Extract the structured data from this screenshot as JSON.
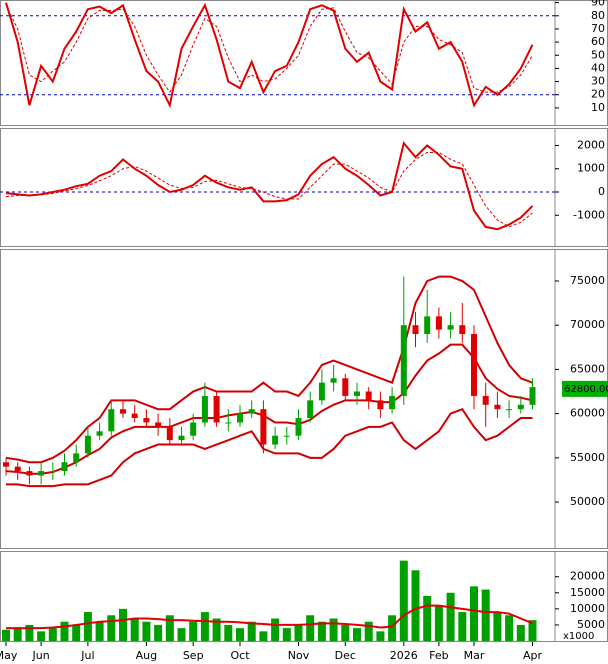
{
  "chart_data": [
    {
      "type": "line",
      "ylim": [
        -3,
        92
      ],
      "yticks": [
        10,
        20,
        30,
        40,
        50,
        60,
        70,
        80,
        90
      ],
      "reference_lines": [
        80,
        20
      ],
      "series": [
        {
          "color": "#e00000",
          "dash": false,
          "values": [
            90,
            60,
            12,
            42,
            30,
            55,
            68,
            85,
            87,
            82,
            88,
            62,
            38,
            30,
            12,
            55,
            72,
            88,
            62,
            30,
            25,
            45,
            22,
            38,
            42,
            60,
            85,
            88,
            84,
            55,
            45,
            52,
            30,
            24,
            85,
            68,
            75,
            55,
            60,
            45,
            12,
            26,
            20,
            28,
            40,
            58
          ]
        },
        {
          "color": "#e00000",
          "dash": true,
          "values": [
            88,
            70,
            35,
            30,
            38,
            45,
            60,
            78,
            84,
            84,
            85,
            72,
            50,
            35,
            22,
            35,
            58,
            78,
            72,
            48,
            30,
            35,
            30,
            32,
            40,
            50,
            72,
            85,
            86,
            68,
            52,
            48,
            38,
            28,
            60,
            72,
            72,
            62,
            58,
            52,
            25,
            22,
            22,
            26,
            35,
            50
          ]
        }
      ]
    },
    {
      "type": "line",
      "ylim": [
        -2320,
        2750
      ],
      "yticks": [
        2000,
        1000,
        0,
        -1000
      ],
      "reference_lines": [
        0
      ],
      "series": [
        {
          "color": "#e00000",
          "dash": false,
          "values": [
            -50,
            -100,
            -150,
            -100,
            0,
            100,
            250,
            350,
            700,
            900,
            1400,
            1000,
            700,
            300,
            0,
            100,
            300,
            700,
            400,
            200,
            100,
            200,
            -400,
            -400,
            -350,
            -100,
            700,
            1200,
            1500,
            1000,
            700,
            300,
            -150,
            0,
            2100,
            1500,
            2000,
            1600,
            1100,
            1000,
            -800,
            -1500,
            -1600,
            -1400,
            -1100,
            -600
          ]
        },
        {
          "color": "#e00000",
          "dash": true,
          "values": [
            -200,
            -150,
            -130,
            -120,
            -60,
            40,
            150,
            280,
            480,
            700,
            1000,
            1100,
            900,
            600,
            300,
            150,
            200,
            450,
            500,
            350,
            200,
            150,
            0,
            -200,
            -300,
            -300,
            200,
            700,
            1200,
            1200,
            900,
            600,
            200,
            0,
            900,
            1400,
            1700,
            1700,
            1400,
            1200,
            300,
            -600,
            -1200,
            -1500,
            -1300,
            -900
          ]
        }
      ]
    },
    {
      "type": "candlestick",
      "ylim": [
        44800,
        78620
      ],
      "yticks": [
        50000,
        55000,
        60000,
        65000,
        70000,
        75000
      ],
      "up_color": "#00a000",
      "down_color": "#e00000",
      "last_price": {
        "value": 62800,
        "label": "62800.00"
      },
      "open": [
        54500,
        54000,
        53500,
        53000,
        53500,
        53500,
        54500,
        55500,
        57500,
        58000,
        60500,
        60000,
        59500,
        59000,
        58500,
        57000,
        57500,
        59000,
        62000,
        59000,
        59000,
        60000,
        60500,
        56500,
        57500,
        57500,
        59500,
        61500,
        63500,
        64000,
        62000,
        62500,
        61500,
        60500,
        62000,
        70000,
        69000,
        71000,
        69500,
        70000,
        69000,
        62000,
        61000,
        60500,
        60500,
        61000
      ],
      "high": [
        55000,
        54500,
        54000,
        54500,
        54500,
        55500,
        56500,
        58500,
        59000,
        61500,
        61500,
        61000,
        60500,
        60000,
        59500,
        58500,
        60000,
        63500,
        62500,
        60500,
        61000,
        61500,
        61500,
        58500,
        58500,
        60500,
        62500,
        65000,
        65500,
        64500,
        63500,
        63000,
        62500,
        63000,
        75500,
        71500,
        74000,
        72000,
        71500,
        72500,
        70000,
        63500,
        62500,
        61500,
        62000,
        64000
      ],
      "low": [
        53000,
        52500,
        52000,
        52000,
        52500,
        53000,
        54000,
        55000,
        57000,
        57500,
        59500,
        59000,
        58500,
        57500,
        56500,
        56500,
        57000,
        58500,
        58500,
        58000,
        58500,
        59500,
        55500,
        56000,
        56500,
        57000,
        59000,
        61000,
        62500,
        61500,
        61000,
        60500,
        59500,
        60000,
        61000,
        67500,
        68000,
        68500,
        68500,
        68000,
        60500,
        58500,
        59500,
        59500,
        60000,
        60500
      ],
      "close": [
        54000,
        53500,
        53000,
        53500,
        53500,
        54500,
        55500,
        57500,
        58000,
        60500,
        60000,
        59500,
        59000,
        58500,
        57000,
        57500,
        59000,
        62000,
        59000,
        59000,
        60000,
        60500,
        56500,
        57500,
        57500,
        59500,
        61500,
        63500,
        64000,
        62000,
        62500,
        61500,
        60500,
        62000,
        70000,
        69000,
        71000,
        69500,
        70000,
        69000,
        62000,
        61000,
        60500,
        60500,
        61000,
        63000
      ],
      "bands": [
        {
          "color": "#d00000",
          "values": [
            55000,
            54800,
            54500,
            54500,
            55000,
            55800,
            57000,
            58500,
            59500,
            61500,
            61500,
            61500,
            61000,
            60500,
            60500,
            61500,
            62500,
            63000,
            62500,
            62500,
            62500,
            62500,
            63500,
            62500,
            62500,
            62000,
            63500,
            65500,
            66000,
            65500,
            65000,
            64500,
            64000,
            63500,
            67500,
            72500,
            75000,
            75500,
            75500,
            75000,
            74000,
            71000,
            68000,
            65500,
            64000,
            63500
          ]
        },
        {
          "color": "#d00000",
          "values": [
            53500,
            53400,
            53200,
            53200,
            53400,
            53900,
            54500,
            55300,
            56000,
            57300,
            58000,
            58500,
            58500,
            58500,
            58500,
            59000,
            59500,
            59500,
            59500,
            59800,
            60000,
            60200,
            59800,
            59000,
            59000,
            58800,
            59300,
            60300,
            61000,
            61500,
            61500,
            61500,
            61300,
            61300,
            62300,
            64300,
            66000,
            66800,
            67800,
            67800,
            66300,
            64000,
            62800,
            62000,
            61800,
            61500
          ]
        },
        {
          "color": "#d00000",
          "values": [
            52000,
            52000,
            51800,
            51800,
            51800,
            52000,
            52000,
            52000,
            52500,
            53000,
            54500,
            55500,
            56000,
            56500,
            56500,
            56500,
            56500,
            56000,
            56500,
            57000,
            57500,
            58000,
            56000,
            55500,
            55500,
            55500,
            55000,
            55000,
            56000,
            57500,
            58000,
            58500,
            58500,
            59000,
            57000,
            56000,
            57000,
            58000,
            60000,
            60500,
            58500,
            57000,
            57500,
            58500,
            59500,
            59500
          ]
        }
      ]
    },
    {
      "type": "bar",
      "ylim": [
        0,
        28000
      ],
      "yticks": [
        5000,
        10000,
        15000,
        20000
      ],
      "unit_label": "x1000",
      "categories": [
        "May",
        null,
        null,
        "Jun",
        null,
        null,
        null,
        "Jul",
        null,
        null,
        null,
        null,
        "Aug",
        null,
        null,
        null,
        "Sep",
        null,
        null,
        null,
        "Oct",
        null,
        null,
        null,
        null,
        "Nov",
        null,
        null,
        null,
        "Dec",
        null,
        null,
        null,
        null,
        "2026",
        null,
        null,
        "Feb",
        null,
        null,
        "Mar",
        null,
        null,
        null,
        null,
        "Apr"
      ],
      "color": "#00a000",
      "values": [
        3500,
        4000,
        5000,
        3000,
        4000,
        6000,
        5000,
        9000,
        6000,
        8000,
        10000,
        7000,
        6000,
        5000,
        8000,
        4000,
        6000,
        9000,
        7000,
        5000,
        4000,
        6000,
        3000,
        7000,
        4000,
        5000,
        8000,
        6000,
        7000,
        5000,
        4000,
        6000,
        3000,
        8000,
        25000,
        22000,
        14000,
        11000,
        15000,
        9000,
        17000,
        16000,
        9000,
        8000,
        5000,
        6500
      ],
      "series": [
        {
          "color": "#e00000",
          "dash": false,
          "values": [
            4000,
            4000,
            4000,
            4000,
            4200,
            4500,
            5000,
            5500,
            6000,
            6200,
            6500,
            7000,
            7000,
            6800,
            6500,
            6500,
            6300,
            6200,
            6000,
            6000,
            5800,
            5500,
            5300,
            5000,
            5000,
            5000,
            5200,
            5500,
            5500,
            5300,
            5000,
            4700,
            4200,
            4500,
            8000,
            10000,
            11000,
            11000,
            10500,
            10000,
            9500,
            9000,
            9000,
            8500,
            7000,
            5500
          ]
        }
      ]
    }
  ]
}
